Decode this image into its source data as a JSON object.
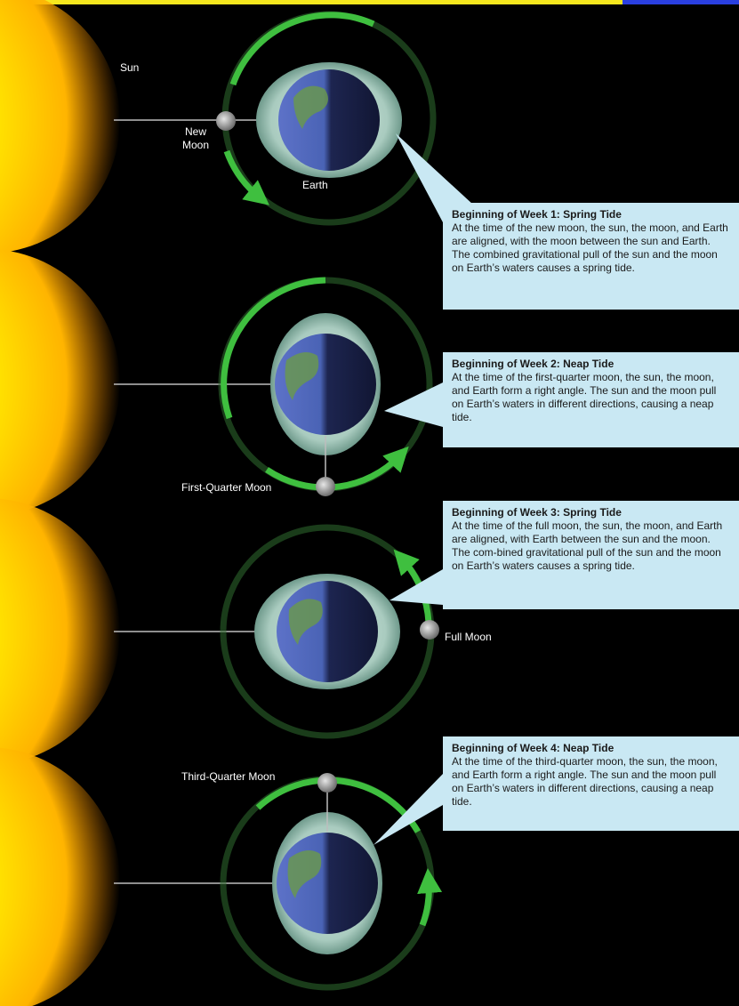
{
  "labels": {
    "sun": "Sun",
    "new_moon_line1": "New",
    "new_moon_line2": "Moon",
    "earth": "Earth",
    "first_quarter_moon": "First-Quarter Moon",
    "full_moon": "Full Moon",
    "third_quarter_moon": "Third-Quarter Moon"
  },
  "callouts": [
    {
      "title": "Beginning of Week 1: Spring Tide",
      "body": "At the time of the new moon, the sun, the moon, and Earth are aligned, with the moon between the sun and Earth. The combined gravitational pull of the sun and the moon on Earth’s waters causes a spring tide."
    },
    {
      "title": "Beginning of Week 2: Neap Tide",
      "body": "At the time of the first-quarter moon, the sun, the moon, and Earth form a right angle. The sun and the moon pull on Earth’s waters in different directions, causing a neap tide."
    },
    {
      "title": "Beginning of Week 3: Spring Tide",
      "body": "At the time of the full moon, the sun, the moon, and Earth are aligned, with Earth between the sun and the moon. The com-bined gravitational pull of the sun and the moon on Earth’s waters causes a spring tide."
    },
    {
      "title": "Beginning of Week 4: Neap Tide",
      "body": "At the time of the third-quarter moon, the sun, the moon, and Earth form a right angle. The sun and the moon pull on Earth’s waters in different directions, causing a neap tide."
    }
  ],
  "colors": {
    "background": "#000000",
    "sun_core": "#ffee00",
    "sun_edge": "#ff9a00",
    "orbit_green": "#3fbf3f",
    "earth_ocean": "#3b4fa8",
    "earth_land": "#6a9a4a",
    "callout_fill": "#c9e8f3",
    "moon_gray": "#9a9a9a"
  }
}
